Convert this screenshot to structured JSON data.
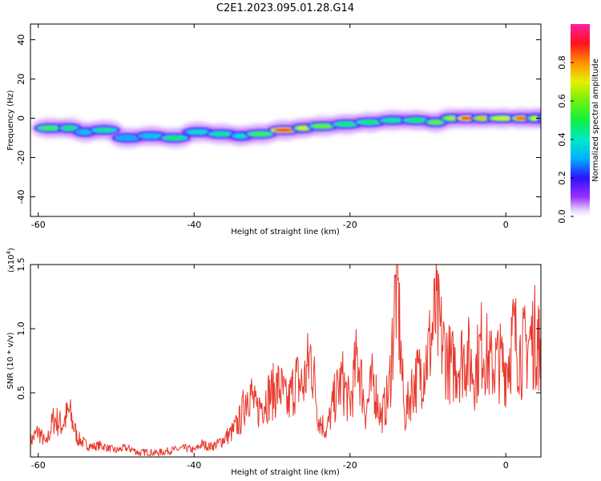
{
  "page": {
    "title": "C2E1.2023.095.01.28.G14"
  },
  "chart_data": [
    {
      "type": "heatmap",
      "xlabel": "Height of straight line (km)",
      "ylabel": "Frequency (Hz)",
      "xlim": [
        -61,
        4.5
      ],
      "ylim": [
        -50,
        48
      ],
      "xticks": [
        -60,
        -40,
        -20,
        0
      ],
      "yticks": [
        -40,
        -20,
        0,
        20,
        40
      ],
      "grid": false,
      "colorbar": {
        "label": "Normalized spectral amplitude",
        "range": [
          0,
          1
        ],
        "ticks": [
          "0.0",
          "0.2",
          "0.4",
          "0.6",
          "0.8"
        ],
        "colormap": "rainbow (white → purple → blue → cyan → green → yellow → red → magenta)"
      },
      "ridge": [
        {
          "x": -60,
          "freq": -5,
          "amp": 0.55
        },
        {
          "x": -57,
          "freq": -5,
          "amp": 0.5
        },
        {
          "x": -55,
          "freq": -7,
          "amp": 0.35
        },
        {
          "x": -53,
          "freq": -6,
          "amp": 0.45
        },
        {
          "x": -50,
          "freq": -10,
          "amp": 0.3
        },
        {
          "x": -47,
          "freq": -9,
          "amp": 0.35
        },
        {
          "x": -44,
          "freq": -10,
          "amp": 0.5
        },
        {
          "x": -41,
          "freq": -7,
          "amp": 0.4
        },
        {
          "x": -38,
          "freq": -8,
          "amp": 0.45
        },
        {
          "x": -35,
          "freq": -9,
          "amp": 0.4
        },
        {
          "x": -33,
          "freq": -8,
          "amp": 0.55
        },
        {
          "x": -30,
          "freq": -6,
          "amp": 0.9
        },
        {
          "x": -27,
          "freq": -5,
          "amp": 0.7
        },
        {
          "x": -25,
          "freq": -4,
          "amp": 0.6
        },
        {
          "x": -22,
          "freq": -3,
          "amp": 0.5
        },
        {
          "x": -19,
          "freq": -2,
          "amp": 0.5
        },
        {
          "x": -16,
          "freq": -1,
          "amp": 0.45
        },
        {
          "x": -13,
          "freq": -1,
          "amp": 0.5
        },
        {
          "x": -10,
          "freq": -2,
          "amp": 0.6
        },
        {
          "x": -8,
          "freq": 0,
          "amp": 0.65
        },
        {
          "x": -6,
          "freq": 0,
          "amp": 0.9
        },
        {
          "x": -4,
          "freq": 0,
          "amp": 0.75
        },
        {
          "x": -2,
          "freq": 0,
          "amp": 0.7
        },
        {
          "x": 1,
          "freq": 0,
          "amp": 0.85
        },
        {
          "x": 3,
          "freq": 0,
          "amp": 0.7
        },
        {
          "x": 4.5,
          "freq": 0,
          "amp": 0.6
        }
      ]
    },
    {
      "type": "line",
      "xlabel": "Height of straight line (km)",
      "ylabel": "SNR (10 * v/v)",
      "ylabel_multiplier": "(x10",
      "ylabel_multiplier_exp": "4",
      "ylabel_multiplier_close": ")",
      "xlim": [
        -61,
        4.5
      ],
      "ylim": [
        0,
        1.5
      ],
      "xticks": [
        -60,
        -40,
        -20,
        0
      ],
      "yticks": [
        "0.5",
        "1.0",
        "1.5"
      ],
      "grid": false,
      "series": [
        {
          "color": "#e8392d",
          "x": [
            -61,
            -60,
            -59,
            -58,
            -57,
            -56,
            -55,
            -54,
            -53,
            -52,
            -51,
            -50,
            -49,
            -48,
            -47,
            -46,
            -45,
            -44,
            -43,
            -42,
            -41,
            -40,
            -39,
            -38,
            -37,
            -36,
            -35,
            -34,
            -33,
            -32,
            -31,
            -30,
            -29,
            -28,
            -27,
            -26,
            -25,
            -24,
            -23,
            -22,
            -21,
            -20,
            -19,
            -18,
            -17,
            -16,
            -15,
            -14,
            -13,
            -12,
            -11,
            -10,
            -9,
            -8,
            -7,
            -6,
            -5,
            -4,
            -3,
            -2,
            -1,
            0,
            1,
            2,
            3,
            4,
            4.5
          ],
          "values": [
            0.12,
            0.2,
            0.1,
            0.3,
            0.25,
            0.35,
            0.15,
            0.1,
            0.08,
            0.09,
            0.07,
            0.05,
            0.07,
            0.06,
            0.03,
            0.04,
            0.03,
            0.04,
            0.05,
            0.06,
            0.07,
            0.05,
            0.1,
            0.08,
            0.1,
            0.15,
            0.2,
            0.3,
            0.55,
            0.35,
            0.45,
            0.5,
            0.55,
            0.4,
            0.6,
            0.55,
            0.8,
            0.3,
            0.2,
            0.45,
            0.6,
            0.4,
            0.8,
            0.35,
            0.6,
            0.3,
            0.5,
            1.4,
            0.3,
            0.55,
            0.65,
            0.8,
            1.1,
            0.85,
            0.7,
            0.75,
            0.8,
            0.65,
            0.9,
            0.7,
            0.75,
            0.7,
            0.95,
            0.8,
            0.9,
            0.95,
            0.8
          ]
        }
      ]
    }
  ],
  "colors": {
    "line": "#e8392d",
    "axis": "#000000"
  }
}
